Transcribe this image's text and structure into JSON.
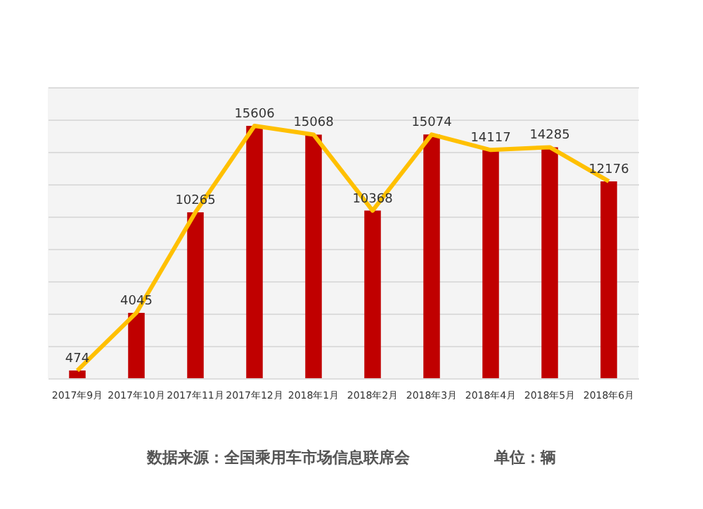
{
  "chart_data": {
    "type": "bar",
    "categories": [
      "2017年9月",
      "2017年10月",
      "2017年11月",
      "2017年12月",
      "2018年1月",
      "2018年2月",
      "2018年3月",
      "2018年4月",
      "2018年5月",
      "2018年6月"
    ],
    "series": [
      {
        "color": "#c00000",
        "values": [
          474,
          4045,
          10265,
          15606,
          15068,
          10368,
          15074,
          14117,
          14285,
          12176
        ],
        "value_labels": [
          "474",
          "4045",
          "10265",
          "15606",
          "15068",
          "10368",
          "15074",
          "14117",
          "14285",
          "12176"
        ]
      },
      {
        "type": "line",
        "color": "#ffc000",
        "values": [
          474,
          4045,
          10265,
          15606,
          15068,
          10368,
          15074,
          14117,
          14285,
          12176
        ]
      }
    ],
    "ylim": [
      0,
      18000
    ],
    "yticks": [
      {
        "value": 0,
        "label": null
      },
      {
        "value": 2000,
        "label": null
      },
      {
        "value": 4000,
        "label": null
      },
      {
        "value": 6000,
        "label": null
      },
      {
        "value": 8000,
        "label": null
      },
      {
        "value": 10000,
        "label": null
      },
      {
        "value": 12000,
        "label": null
      },
      {
        "value": 14000,
        "label": null
      },
      {
        "value": 16000,
        "label": null
      },
      {
        "value": 18000,
        "label": null
      }
    ],
    "tick_labels": "x",
    "grid": "y",
    "marker": "none",
    "line_style": "solid",
    "annotations": [
      "数据来源：全国乘用车市场信息联席会",
      "单位：辆"
    ]
  }
}
